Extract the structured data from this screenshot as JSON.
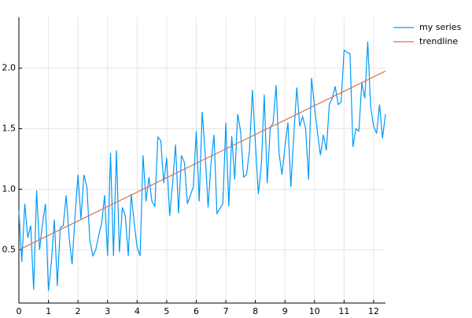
{
  "chart_data": {
    "type": "line",
    "x": [
      0.0,
      0.1,
      0.2,
      0.3,
      0.4,
      0.5,
      0.6,
      0.7,
      0.8,
      0.9,
      1.0,
      1.1,
      1.2,
      1.3,
      1.4,
      1.5,
      1.6,
      1.7,
      1.8,
      1.9,
      2.0,
      2.1,
      2.2,
      2.3,
      2.4,
      2.5,
      2.6,
      2.7,
      2.8,
      2.9,
      3.0,
      3.1,
      3.2,
      3.3,
      3.4,
      3.5,
      3.6,
      3.7,
      3.8,
      3.9,
      4.0,
      4.1,
      4.2,
      4.3,
      4.4,
      4.5,
      4.6,
      4.7,
      4.8,
      4.9,
      5.0,
      5.1,
      5.2,
      5.3,
      5.4,
      5.5,
      5.6,
      5.7,
      5.8,
      5.9,
      6.0,
      6.1,
      6.2,
      6.3,
      6.4,
      6.5,
      6.6,
      6.7,
      6.8,
      6.9,
      7.0,
      7.1,
      7.2,
      7.3,
      7.4,
      7.5,
      7.6,
      7.7,
      7.8,
      7.9,
      8.0,
      8.1,
      8.2,
      8.3,
      8.4,
      8.5,
      8.6,
      8.7,
      8.8,
      8.9,
      9.0,
      9.1,
      9.2,
      9.3,
      9.4,
      9.5,
      9.6,
      9.7,
      9.8,
      9.9,
      10.0,
      10.1,
      10.2,
      10.3,
      10.4,
      10.5,
      10.6,
      10.7,
      10.8,
      10.9,
      11.0,
      11.1,
      11.2,
      11.3,
      11.4,
      11.5,
      11.6,
      11.7,
      11.8,
      11.9,
      12.0,
      12.1,
      12.2,
      12.3,
      12.4
    ],
    "series": [
      {
        "name": "my series",
        "color": "#009af9",
        "values": [
          0.82,
          0.4,
          0.88,
          0.6,
          0.7,
          0.17,
          0.99,
          0.5,
          0.72,
          0.88,
          0.16,
          0.4,
          0.75,
          0.2,
          0.68,
          0.7,
          0.95,
          0.6,
          0.38,
          0.78,
          1.12,
          0.75,
          1.12,
          1.02,
          0.58,
          0.45,
          0.5,
          0.62,
          0.72,
          0.95,
          0.45,
          1.3,
          0.45,
          1.32,
          0.48,
          0.85,
          0.78,
          0.45,
          0.96,
          0.72,
          0.52,
          0.45,
          1.28,
          0.9,
          1.1,
          0.9,
          0.86,
          1.43,
          1.4,
          1.05,
          1.26,
          0.78,
          1.05,
          1.37,
          0.8,
          1.28,
          1.22,
          0.88,
          0.95,
          1.02,
          1.48,
          0.9,
          1.64,
          1.3,
          0.85,
          1.22,
          1.45,
          0.8,
          0.84,
          0.88,
          1.55,
          0.86,
          1.44,
          1.08,
          1.62,
          1.48,
          1.1,
          1.12,
          1.32,
          1.82,
          1.38,
          0.96,
          1.2,
          1.78,
          1.05,
          1.5,
          1.55,
          1.86,
          1.3,
          1.12,
          1.35,
          1.55,
          1.02,
          1.45,
          1.84,
          1.52,
          1.6,
          1.5,
          1.08,
          1.92,
          1.68,
          1.47,
          1.28,
          1.45,
          1.32,
          1.7,
          1.75,
          1.85,
          1.7,
          1.72,
          2.15,
          2.13,
          2.12,
          1.35,
          1.5,
          1.48,
          1.88,
          1.75,
          2.22,
          1.68,
          1.52,
          1.46,
          1.7,
          1.42,
          1.62
        ]
      },
      {
        "name": "trendline",
        "color": "#e26f46",
        "x": [
          0,
          12.4
        ],
        "values": [
          0.5,
          1.976
        ]
      }
    ],
    "xlim": [
      0,
      12.4
    ],
    "ylim": [
      0.06,
      2.42
    ],
    "xticks": [
      0,
      1,
      2,
      3,
      4,
      5,
      6,
      7,
      8,
      9,
      10,
      11,
      12
    ],
    "yticks": [
      0.5,
      {
        "value": 1.0,
        "label": "1.0"
      },
      1.5,
      {
        "value": 2.0,
        "label": "2.0"
      }
    ],
    "grid": true,
    "legend": "top-right"
  }
}
